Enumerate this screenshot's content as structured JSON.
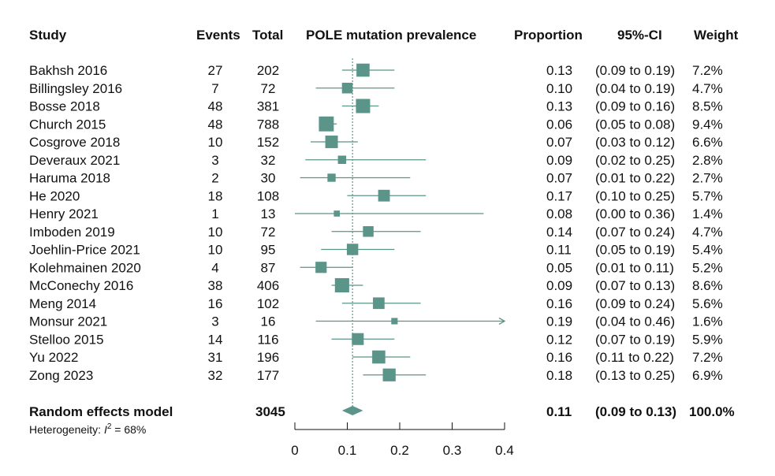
{
  "chart_data": {
    "type": "forest",
    "headers": {
      "study": "Study",
      "events": "Events",
      "total": "Total",
      "plot": "POLE mutation prevalence",
      "proportion": "Proportion",
      "ci": "95%-CI",
      "weight": "Weight"
    },
    "studies": [
      {
        "study": "Bakhsh 2016",
        "events": "27",
        "total": "202",
        "proportion": 0.13,
        "lower": 0.09,
        "upper": 0.19,
        "proportion_text": "0.13",
        "ci_text": "(0.09 to 0.19)",
        "weight": 7.2,
        "weight_text": "7.2%"
      },
      {
        "study": "Billingsley  2016",
        "events": "7",
        "total": "72",
        "proportion": 0.1,
        "lower": 0.04,
        "upper": 0.19,
        "proportion_text": "0.10",
        "ci_text": "(0.04 to 0.19)",
        "weight": 4.7,
        "weight_text": "4.7%"
      },
      {
        "study": "Bosse 2018",
        "events": "48",
        "total": "381",
        "proportion": 0.13,
        "lower": 0.09,
        "upper": 0.16,
        "proportion_text": "0.13",
        "ci_text": "(0.09 to 0.16)",
        "weight": 8.5,
        "weight_text": "8.5%"
      },
      {
        "study": "Church 2015",
        "events": "48",
        "total": "788",
        "proportion": 0.06,
        "lower": 0.05,
        "upper": 0.08,
        "proportion_text": "0.06",
        "ci_text": "(0.05 to 0.08)",
        "weight": 9.4,
        "weight_text": "9.4%"
      },
      {
        "study": "Cosgrove 2018",
        "events": "10",
        "total": "152",
        "proportion": 0.07,
        "lower": 0.03,
        "upper": 0.12,
        "proportion_text": "0.07",
        "ci_text": "(0.03 to 0.12)",
        "weight": 6.6,
        "weight_text": "6.6%"
      },
      {
        "study": "Deveraux 2021",
        "events": "3",
        "total": "32",
        "proportion": 0.09,
        "lower": 0.02,
        "upper": 0.25,
        "proportion_text": "0.09",
        "ci_text": "(0.02 to 0.25)",
        "weight": 2.8,
        "weight_text": "2.8%"
      },
      {
        "study": "Haruma 2018",
        "events": "2",
        "total": "30",
        "proportion": 0.07,
        "lower": 0.01,
        "upper": 0.22,
        "proportion_text": "0.07",
        "ci_text": "(0.01 to 0.22)",
        "weight": 2.7,
        "weight_text": "2.7%"
      },
      {
        "study": "He 2020",
        "events": "18",
        "total": "108",
        "proportion": 0.17,
        "lower": 0.1,
        "upper": 0.25,
        "proportion_text": "0.17",
        "ci_text": "(0.10 to 0.25)",
        "weight": 5.7,
        "weight_text": "5.7%"
      },
      {
        "study": "Henry 2021",
        "events": "1",
        "total": "13",
        "proportion": 0.08,
        "lower": 0.0,
        "upper": 0.36,
        "proportion_text": "0.08",
        "ci_text": "(0.00 to 0.36)",
        "weight": 1.4,
        "weight_text": "1.4%"
      },
      {
        "study": "Imboden 2019",
        "events": "10",
        "total": "72",
        "proportion": 0.14,
        "lower": 0.07,
        "upper": 0.24,
        "proportion_text": "0.14",
        "ci_text": "(0.07 to 0.24)",
        "weight": 4.7,
        "weight_text": "4.7%"
      },
      {
        "study": "Joehlin-Price 2021",
        "events": "10",
        "total": "95",
        "proportion": 0.11,
        "lower": 0.05,
        "upper": 0.19,
        "proportion_text": "0.11",
        "ci_text": "(0.05 to 0.19)",
        "weight": 5.4,
        "weight_text": "5.4%"
      },
      {
        "study": "Kolehmainen 2020",
        "events": "4",
        "total": "87",
        "proportion": 0.05,
        "lower": 0.01,
        "upper": 0.11,
        "proportion_text": "0.05",
        "ci_text": "(0.01 to 0.11)",
        "weight": 5.2,
        "weight_text": "5.2%"
      },
      {
        "study": "McConechy 2016",
        "events": "38",
        "total": "406",
        "proportion": 0.09,
        "lower": 0.07,
        "upper": 0.13,
        "proportion_text": "0.09",
        "ci_text": "(0.07 to 0.13)",
        "weight": 8.6,
        "weight_text": "8.6%"
      },
      {
        "study": "Meng 2014",
        "events": "16",
        "total": "102",
        "proportion": 0.16,
        "lower": 0.09,
        "upper": 0.24,
        "proportion_text": "0.16",
        "ci_text": "(0.09 to 0.24)",
        "weight": 5.6,
        "weight_text": "5.6%"
      },
      {
        "study": "Monsur 2021",
        "events": "3",
        "total": "16",
        "proportion": 0.19,
        "lower": 0.04,
        "upper": 0.46,
        "proportion_text": "0.19",
        "ci_text": "(0.04 to 0.46)",
        "weight": 1.6,
        "weight_text": "1.6%"
      },
      {
        "study": "Stelloo 2015",
        "events": "14",
        "total": "116",
        "proportion": 0.12,
        "lower": 0.07,
        "upper": 0.19,
        "proportion_text": "0.12",
        "ci_text": "(0.07 to 0.19)",
        "weight": 5.9,
        "weight_text": "5.9%"
      },
      {
        "study": "Yu 2022",
        "events": "31",
        "total": "196",
        "proportion": 0.16,
        "lower": 0.11,
        "upper": 0.22,
        "proportion_text": "0.16",
        "ci_text": "(0.11 to 0.22)",
        "weight": 7.2,
        "weight_text": "7.2%"
      },
      {
        "study": "Zong  2023",
        "events": "32",
        "total": "177",
        "proportion": 0.18,
        "lower": 0.13,
        "upper": 0.25,
        "proportion_text": "0.18",
        "ci_text": "(0.13 to 0.25)",
        "weight": 6.9,
        "weight_text": "6.9%"
      }
    ],
    "summary": {
      "label": "Random effects model",
      "total": "3045",
      "proportion": 0.11,
      "lower": 0.09,
      "upper": 0.13,
      "proportion_text": "0.11",
      "ci_text": "(0.09 to 0.13)",
      "weight_text": "100.0%"
    },
    "heterogeneity": {
      "prefix": "Heterogeneity: ",
      "symbol": "I",
      "superscript": "2",
      "suffix": " = 68%"
    },
    "x_axis": {
      "ticks": [
        0,
        0.1,
        0.2,
        0.3,
        0.4
      ],
      "tick_labels": [
        "0",
        "0.1",
        "0.2",
        "0.3",
        "0.4"
      ],
      "range": [
        0,
        0.4
      ]
    },
    "colors": {
      "marker": "#5b9488",
      "text": "#111111",
      "reference_line": "#5b9488"
    }
  }
}
